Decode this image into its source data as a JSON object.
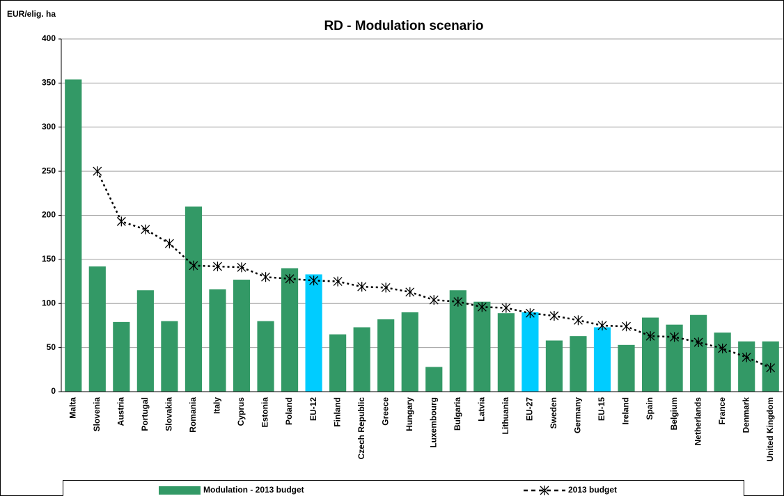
{
  "chart_data": {
    "type": "bar",
    "title": "RD - Modulation scenario",
    "y_label": "EUR/elig. ha",
    "categories": [
      "Malta",
      "Slovenia",
      "Austria",
      "Portugal",
      "Slovakia",
      "Romania",
      "Italy",
      "Cyprus",
      "Estonia",
      "Poland",
      "EU-12",
      "Finland",
      "Czech Republic",
      "Greece",
      "Hungary",
      "Luxembourg",
      "Bulgaria",
      "Latvia",
      "Lithuania",
      "EU-27",
      "Sweden",
      "Germany",
      "EU-15",
      "Ireland",
      "Spain",
      "Belgium",
      "Netherlands",
      "France",
      "Denmark",
      "United Kingdom"
    ],
    "series": [
      {
        "name": "Modulation - 2013 budget",
        "type": "bar",
        "color": "#339966",
        "colors": [
          "#339966",
          "#339966",
          "#339966",
          "#339966",
          "#339966",
          "#339966",
          "#339966",
          "#339966",
          "#339966",
          "#339966",
          "#00ccff",
          "#339966",
          "#339966",
          "#339966",
          "#339966",
          "#339966",
          "#339966",
          "#339966",
          "#339966",
          "#00ccff",
          "#339966",
          "#339966",
          "#00ccff",
          "#339966",
          "#339966",
          "#339966",
          "#339966",
          "#339966",
          "#339966",
          "#339966"
        ],
        "values": [
          354,
          142,
          79,
          115,
          80,
          210,
          116,
          127,
          80,
          140,
          133,
          65,
          73,
          82,
          90,
          28,
          115,
          102,
          89,
          90,
          58,
          63,
          73,
          53,
          84,
          76,
          87,
          67,
          57,
          57
        ]
      },
      {
        "name": "2013 budget",
        "type": "line",
        "color": "#000000",
        "values": [
          null,
          250,
          193,
          184,
          168,
          143,
          142,
          141,
          130,
          128,
          126,
          125,
          119,
          118,
          113,
          104,
          102,
          96,
          95,
          89,
          86,
          81,
          75,
          74,
          63,
          62,
          56,
          49,
          39,
          27
        ]
      }
    ],
    "ylim": [
      0,
      400
    ],
    "yticks": [
      0,
      50,
      100,
      150,
      200,
      250,
      300,
      350,
      400
    ],
    "grid": true,
    "legend": "bottom"
  }
}
